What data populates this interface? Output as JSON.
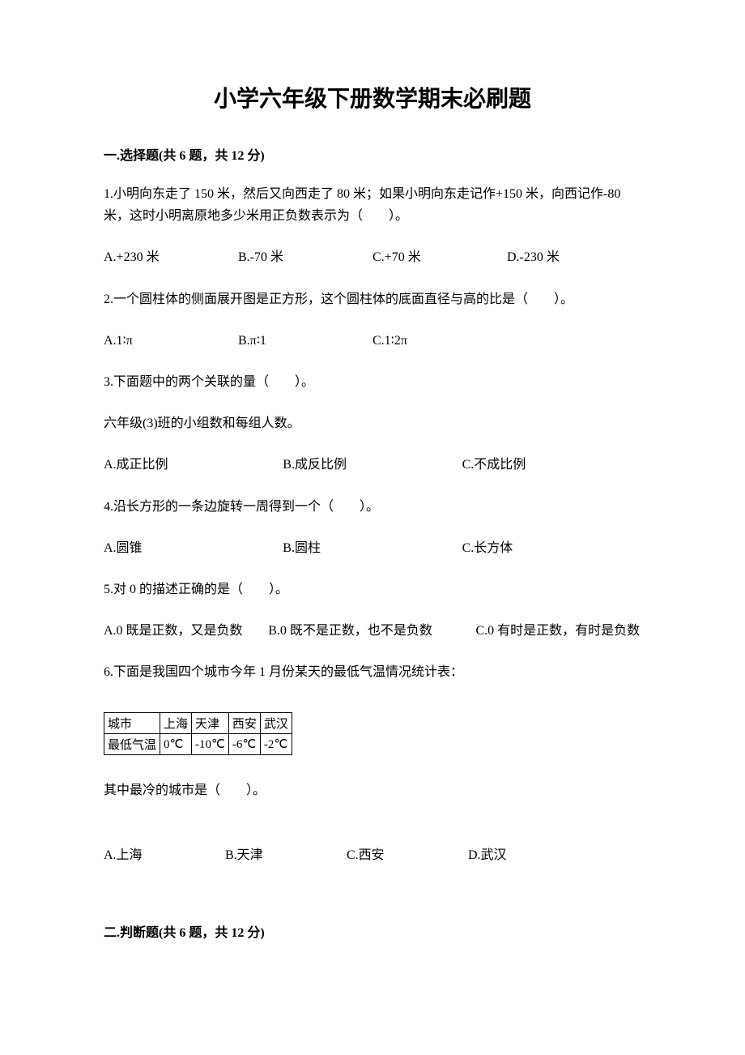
{
  "title": "小学六年级下册数学期末必刷题",
  "section1": {
    "header": "一.选择题(共 6 题，共 12 分)",
    "q1": {
      "text": "1.小明向东走了 150 米，然后又向西走了 80 米；如果小明向东走记作+150 米，向西记作-80 米，这时小明离原地多少米用正负数表示为（　　）。",
      "optA": "A.+230 米",
      "optB": "B.-70 米",
      "optC": "C.+70 米",
      "optD": "D.-230 米"
    },
    "q2": {
      "text": "2.一个圆柱体的侧面展开图是正方形，这个圆柱体的底面直径与高的比是（　　）。",
      "optA": "A.1∶π",
      "optB": "B.π∶1",
      "optC": "C.1∶2π"
    },
    "q3": {
      "text": "3.下面题中的两个关联的量（　　）。",
      "sub": "六年级(3)班的小组数和每组人数。",
      "optA": "A.成正比例",
      "optB": "B.成反比例",
      "optC": "C.不成比例"
    },
    "q4": {
      "text": "4.沿长方形的一条边旋转一周得到一个（　　）。",
      "optA": "A.圆锥",
      "optB": "B.圆柱",
      "optC": "C.长方体"
    },
    "q5": {
      "text": "5.对 0 的描述正确的是（　　）。",
      "optA": "A.0 既是正数，又是负数",
      "optB": "B.0 既不是正数，也不是负数",
      "optC": "C.0 有时是正数，有时是负数"
    },
    "q6": {
      "text": "6.下面是我国四个城市今年 1 月份某天的最低气温情况统计表：",
      "table": {
        "headers": [
          "城市",
          "上海",
          "天津",
          "西安",
          "武汉"
        ],
        "rowLabel": "最低气温",
        "values": [
          "0℃",
          "-10℃",
          "-6℃",
          "-2℃"
        ]
      },
      "followup": "其中最冷的城市是（　　）。",
      "optA": "A.上海",
      "optB": "B.天津",
      "optC": "C.西安",
      "optD": "D.武汉"
    }
  },
  "section2": {
    "header": "二.判断题(共 6 题，共 12 分)"
  }
}
